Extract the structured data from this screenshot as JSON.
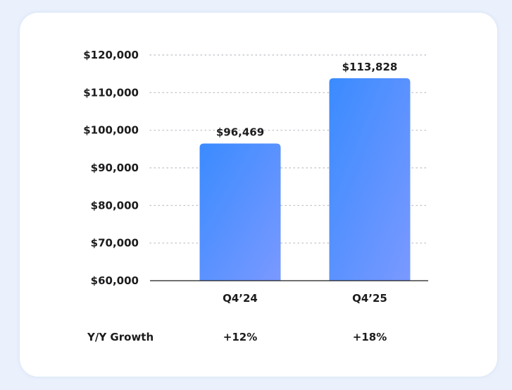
{
  "chart_data": {
    "type": "bar",
    "categories": [
      "Q4’24",
      "Q4’25"
    ],
    "values": [
      96469,
      113828
    ],
    "data_labels": [
      "$96,469",
      "$113,828"
    ],
    "ylim": [
      60000,
      120000
    ],
    "y_ticks": [
      60000,
      70000,
      80000,
      90000,
      100000,
      110000,
      120000
    ],
    "y_tick_labels": [
      "$60,000",
      "$70,000",
      "$80,000",
      "$90,000",
      "$100,000",
      "$110,000",
      "$120,000"
    ],
    "grid": "horizontal-dotted",
    "bar_colors": [
      "#3a8bff",
      "#7a99ff"
    ]
  },
  "growth_row": {
    "label": "Y/Y Growth",
    "values": [
      "+12%",
      "+18%"
    ]
  }
}
